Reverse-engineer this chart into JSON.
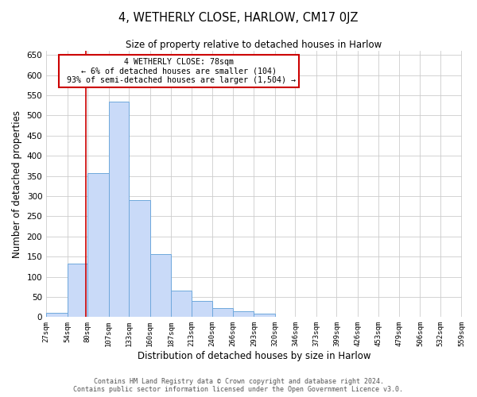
{
  "title": "4, WETHERLY CLOSE, HARLOW, CM17 0JZ",
  "subtitle": "Size of property relative to detached houses in Harlow",
  "xlabel": "Distribution of detached houses by size in Harlow",
  "ylabel": "Number of detached properties",
  "bin_edges": [
    27,
    54,
    80,
    107,
    133,
    160,
    187,
    213,
    240,
    266,
    293,
    320,
    346,
    373,
    399,
    426,
    453,
    479,
    506,
    532,
    559
  ],
  "bar_heights": [
    10,
    133,
    358,
    535,
    291,
    157,
    65,
    40,
    22,
    15,
    8,
    1,
    0,
    0,
    0,
    1,
    0,
    0,
    0,
    1
  ],
  "bar_color": "#c9daf8",
  "bar_edge_color": "#6fa8dc",
  "property_size": 78,
  "pct_smaller": 6,
  "n_smaller": 104,
  "pct_larger": 93,
  "n_larger": 1504,
  "vline_color": "#cc0000",
  "box_edge_color": "#cc0000",
  "ylim": [
    0,
    660
  ],
  "yticks": [
    0,
    50,
    100,
    150,
    200,
    250,
    300,
    350,
    400,
    450,
    500,
    550,
    600,
    650
  ],
  "tick_labels": [
    "27sqm",
    "54sqm",
    "80sqm",
    "107sqm",
    "133sqm",
    "160sqm",
    "187sqm",
    "213sqm",
    "240sqm",
    "266sqm",
    "293sqm",
    "320sqm",
    "346sqm",
    "373sqm",
    "399sqm",
    "426sqm",
    "453sqm",
    "479sqm",
    "506sqm",
    "532sqm",
    "559sqm"
  ],
  "footer1": "Contains HM Land Registry data © Crown copyright and database right 2024.",
  "footer2": "Contains public sector information licensed under the Open Government Licence v3.0.",
  "bg_color": "#ffffff",
  "grid_color": "#cccccc"
}
